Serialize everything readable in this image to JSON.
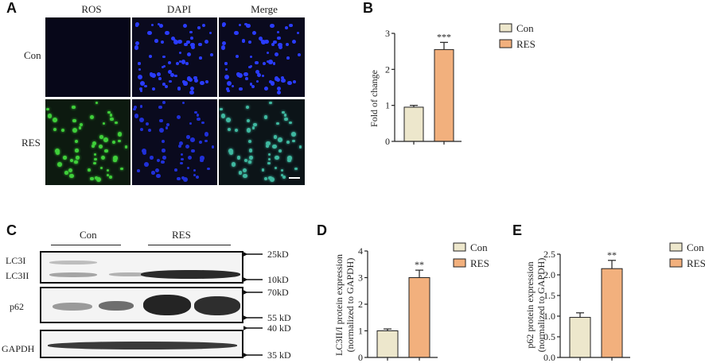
{
  "panels": {
    "A": "A",
    "B": "B",
    "C": "C",
    "D": "D",
    "E": "E"
  },
  "panelA": {
    "columns": [
      "ROS",
      "DAPI",
      "Merge"
    ],
    "rows": [
      "Con",
      "RES"
    ]
  },
  "panelC": {
    "groups": [
      "Con",
      "RES"
    ],
    "left_labels": [
      "LC3I",
      "LC3II",
      "p62",
      "GAPDH"
    ],
    "markers": [
      "25kD",
      "10kD",
      "70kD",
      "55 kD",
      "40 kD",
      "35 kD"
    ]
  },
  "colors": {
    "con": "#ede7cc",
    "res": "#f2b07d",
    "axis": "#222222"
  },
  "chart_data": [
    {
      "type": "bar",
      "panel": "B",
      "categories": [
        "Con",
        "RES"
      ],
      "values": [
        0.95,
        2.55
      ],
      "errors": [
        0.05,
        0.2
      ],
      "significance": [
        "",
        "***"
      ],
      "ylabel": "Fold of change",
      "ylim": [
        0,
        3
      ],
      "yticks": [
        "0",
        "1",
        "2",
        "3"
      ],
      "legend": [
        "Con",
        "RES"
      ]
    },
    {
      "type": "bar",
      "panel": "D",
      "categories": [
        "Con",
        "RES"
      ],
      "values": [
        1.0,
        3.0
      ],
      "errors": [
        0.07,
        0.28
      ],
      "significance": [
        "",
        "**"
      ],
      "ylabel": "LC3II/I protein expression",
      "ylabel2": "(normalized to GAPDH)",
      "ylim": [
        0,
        4
      ],
      "yticks": [
        "0",
        "1",
        "2",
        "3",
        "4"
      ],
      "legend": [
        "Con",
        "RES"
      ]
    },
    {
      "type": "bar",
      "panel": "E",
      "categories": [
        "Con",
        "RES"
      ],
      "values": [
        0.97,
        2.15
      ],
      "errors": [
        0.11,
        0.2
      ],
      "significance": [
        "",
        "**"
      ],
      "ylabel": "p62 protein expression",
      "ylabel2": "(normalized to GAPDH)",
      "ylim": [
        0,
        2.5
      ],
      "yticks": [
        "0.0",
        "0.5",
        "1.0",
        "1.5",
        "2.0",
        "2.5"
      ],
      "legend": [
        "Con",
        "RES"
      ]
    }
  ]
}
